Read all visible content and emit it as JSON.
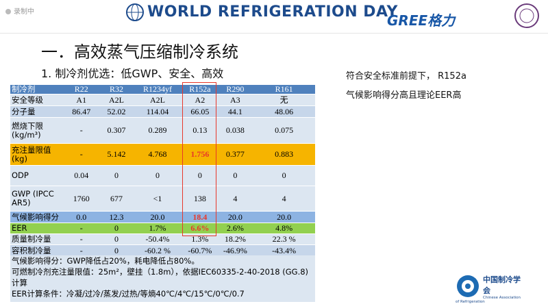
{
  "status": "录制中",
  "header": {
    "banner": "WORLD REFRIGERATION DAY",
    "brand": "GREE格力"
  },
  "title": "一．高效蒸气压缩制冷系统",
  "subtitle": "1.   制冷剂优选：低GWP、安全、高效",
  "note": [
    "符合安全标准前提下， R152a",
    "气候影响得分高且理论EER高"
  ],
  "table": {
    "header_color": "#4f81bd",
    "highlight_column": 4,
    "highlight_color": "#e8372a",
    "columns": [
      "制冷剂",
      "R22",
      "R32",
      "R1234yf",
      "R152a",
      "R290",
      "R161"
    ],
    "rows": [
      {
        "cells": [
          "安全等级",
          "A1",
          "A2L",
          "A2L",
          "A2",
          "A3",
          "无"
        ],
        "background": "#dce6f1"
      },
      {
        "cells": [
          "分子量",
          "86.47",
          "52.02",
          "114.04",
          "66.05",
          "44.1",
          "48.06"
        ],
        "background": "#c6d6ea"
      },
      {
        "cells": [
          "燃烧下限\n(kg/m³)",
          "-",
          "0.307",
          "0.289",
          "0.13",
          "0.038",
          "0.075"
        ],
        "background": "#dce6f1"
      },
      {
        "cells": [
          "充注量限值\n(kg)",
          "-",
          "5.142",
          "4.768",
          "1.756",
          "0.377",
          "0.883"
        ],
        "background": "#f6b400",
        "highlight": true
      },
      {
        "cells": [
          "ODP",
          "0.04",
          "0",
          "0",
          "0",
          "0",
          "0"
        ],
        "background": "#dce6f1"
      },
      {
        "cells": [
          "GWP (IPCC\nAR5)",
          "1760",
          "677",
          "<1",
          "138",
          "4",
          "4"
        ],
        "background": "#dce6f1"
      },
      {
        "cells": [
          "气候影响得分",
          "0.0",
          "12.3",
          "20.0",
          "18.4",
          "20.0",
          "20.0"
        ],
        "background": "#8db3e2",
        "highlight": true
      },
      {
        "cells": [
          "EER",
          "-",
          "0",
          "1.7%",
          "6.6%",
          "2.6%",
          "4.8%"
        ],
        "background": "#92d050",
        "highlight": true
      },
      {
        "cells": [
          "质量制冷量",
          "-",
          "0",
          "-50.4%",
          "1.3%",
          "18.2%",
          "22.3 %"
        ],
        "background": "#dce6f1"
      },
      {
        "cells": [
          "容积制冷量",
          "-",
          "0",
          "-60.2 %",
          "-60.7%",
          "-46.9%",
          "-43.4%"
        ],
        "background": "#c6d6ea"
      }
    ],
    "footnotes": [
      "气候影响得分：GWP降低占20%，耗电降低占80%。",
      "可燃制冷剂充注量限值：25m²，壁挂（1.8m），依据IEC60335-2-40-2018 (GG.8)计算",
      "EER计算条件：冷凝/过冷/蒸发/过热/等熵40℃/4℃/15℃/0℃/0.7"
    ]
  },
  "logo": {
    "name": "中国制冷学会",
    "english": "Chinese Association of Refrigeration"
  }
}
